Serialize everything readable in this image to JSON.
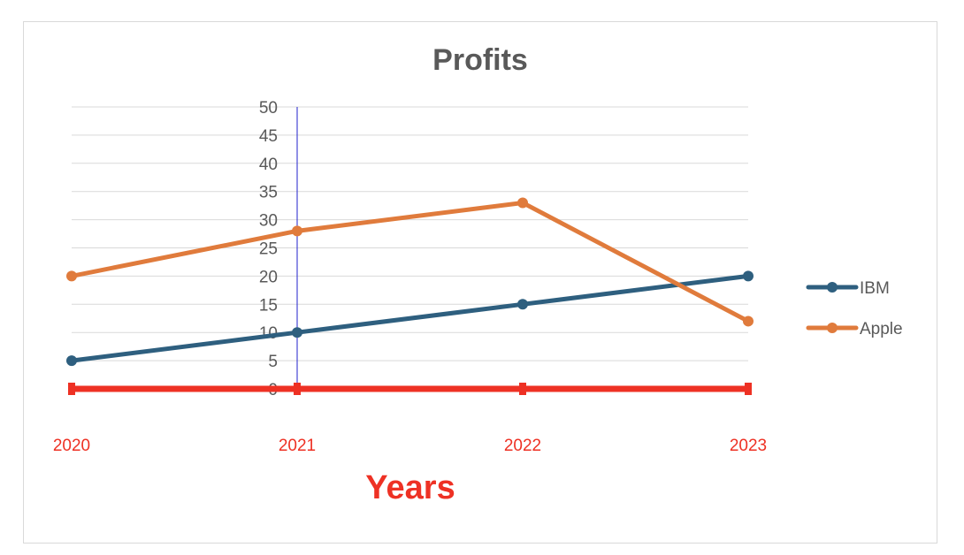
{
  "chart_data": {
    "type": "line",
    "title": "Profits",
    "xlabel": "Years",
    "ylabel": "",
    "categories": [
      "2020",
      "2021",
      "2022",
      "2023"
    ],
    "ylim": [
      0,
      50
    ],
    "yticks": [
      0,
      5,
      10,
      15,
      20,
      25,
      30,
      35,
      40,
      45,
      50
    ],
    "grid": true,
    "legend_position": "right",
    "series": [
      {
        "name": "IBM",
        "values": [
          5,
          10,
          15,
          20
        ],
        "color": "#2e5f7f"
      },
      {
        "name": "Apple",
        "values": [
          20,
          28,
          33,
          12
        ],
        "color": "#e07b3c"
      }
    ],
    "colors": {
      "x_axis": "#ee3124",
      "x_tick_labels": "#ee3124",
      "xlabel": "#ee3124",
      "y_axis": "#2222cc",
      "gridlines": "#d9d9d9",
      "title": "#595959"
    }
  }
}
